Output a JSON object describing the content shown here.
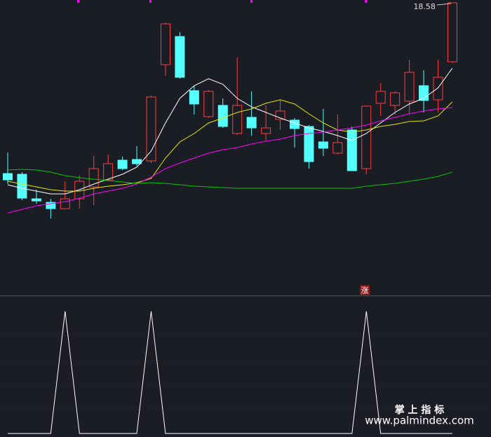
{
  "chart_data": [
    {
      "type": "candlestick",
      "open": [
        13.72,
        13.7,
        13.0,
        12.9,
        12.72,
        13.0,
        13.34,
        13.54,
        14.1,
        14.12,
        14.08,
        16.82,
        17.62,
        16.08,
        15.34,
        15.66,
        14.86,
        15.32,
        14.86,
        15.26,
        15.24,
        15.06,
        14.62,
        14.3,
        14.96,
        13.86,
        15.72,
        15.66,
        15.78,
        16.22,
        15.82,
        16.9
      ],
      "high": [
        14.32,
        13.76,
        13.26,
        13.0,
        13.5,
        13.66,
        14.22,
        14.26,
        14.2,
        14.5,
        15.94,
        18.02,
        17.74,
        16.22,
        16.1,
        15.86,
        17.02,
        16.06,
        15.66,
        15.8,
        15.3,
        15.1,
        15.56,
        15.4,
        15.06,
        15.66,
        16.3,
        16.06,
        16.96,
        16.66,
        16.96,
        18.58
      ],
      "low": [
        13.42,
        12.96,
        12.86,
        12.44,
        12.7,
        12.72,
        12.82,
        13.5,
        13.82,
        13.94,
        14.02,
        16.5,
        16.42,
        15.4,
        15.3,
        15.02,
        14.82,
        14.8,
        14.66,
        14.96,
        14.46,
        13.86,
        14.22,
        14.26,
        13.8,
        13.7,
        15.36,
        15.4,
        15.42,
        15.46,
        15.46,
        16.86
      ],
      "close": [
        13.54,
        13.02,
        12.94,
        12.72,
        13.0,
        13.5,
        13.86,
        14.0,
        13.86,
        14.0,
        15.9,
        17.98,
        16.46,
        15.7,
        16.06,
        15.06,
        15.66,
        15.02,
        15.02,
        15.5,
        15.0,
        14.06,
        14.44,
        14.6,
        13.8,
        15.64,
        16.06,
        16.02,
        16.6,
        15.8,
        16.46,
        18.58
      ],
      "up_color": "#ff3c3c",
      "down_color": "#54ffff",
      "series": [
        {
          "color": "#ffffff",
          "values": [
            13.4,
            13.3,
            13.22,
            13.14,
            13.14,
            13.26,
            13.42,
            13.56,
            13.7,
            13.9,
            14.36,
            15.16,
            15.86,
            16.22,
            16.42,
            16.26,
            15.86,
            15.62,
            15.46,
            15.3,
            15.16,
            15.02,
            14.92,
            14.8,
            14.66,
            14.86,
            15.16,
            15.46,
            15.7,
            15.86,
            16.16,
            16.72
          ]
        },
        {
          "color": "#e6e600",
          "values": [
            13.5,
            13.42,
            13.34,
            13.26,
            13.22,
            13.22,
            13.3,
            13.36,
            13.4,
            13.46,
            13.58,
            14.16,
            14.62,
            14.86,
            15.16,
            15.3,
            15.46,
            15.56,
            15.72,
            15.82,
            15.7,
            15.42,
            15.16,
            14.96,
            14.9,
            14.96,
            15.06,
            15.12,
            15.2,
            15.22,
            15.36,
            15.76
          ]
        },
        {
          "color": "#ff00ff",
          "values": [
            12.6,
            12.7,
            12.8,
            12.86,
            12.92,
            13.02,
            13.14,
            13.22,
            13.3,
            13.42,
            13.62,
            13.86,
            14.02,
            14.16,
            14.3,
            14.4,
            14.46,
            14.56,
            14.64,
            14.7,
            14.8,
            14.86,
            14.9,
            14.96,
            15.02,
            15.1,
            15.22,
            15.32,
            15.42,
            15.5,
            15.56,
            15.6
          ]
        },
        {
          "color": "#00c800",
          "values": [
            13.82,
            13.84,
            13.82,
            13.76,
            13.66,
            13.6,
            13.56,
            13.52,
            13.48,
            13.44,
            13.46,
            13.44,
            13.4,
            13.36,
            13.34,
            13.32,
            13.3,
            13.3,
            13.3,
            13.3,
            13.3,
            13.3,
            13.3,
            13.3,
            13.3,
            13.36,
            13.4,
            13.44,
            13.5,
            13.56,
            13.64,
            13.76
          ]
        }
      ],
      "annotation": "涨",
      "ylim": [
        10.26,
        18.66
      ]
    },
    {
      "type": "line",
      "color": "#ffffff",
      "values": [
        0,
        0,
        0,
        0,
        1,
        0,
        0,
        0,
        0,
        0,
        1,
        0,
        0,
        0,
        0,
        0,
        0,
        0,
        0,
        0,
        0,
        0,
        0,
        0,
        0,
        1,
        0,
        0,
        0,
        0,
        0,
        0
      ],
      "ylim": [
        0,
        1
      ]
    }
  ],
  "watermark": {
    "title": "掌 上 指 标",
    "url": "www.palmindex.com"
  }
}
